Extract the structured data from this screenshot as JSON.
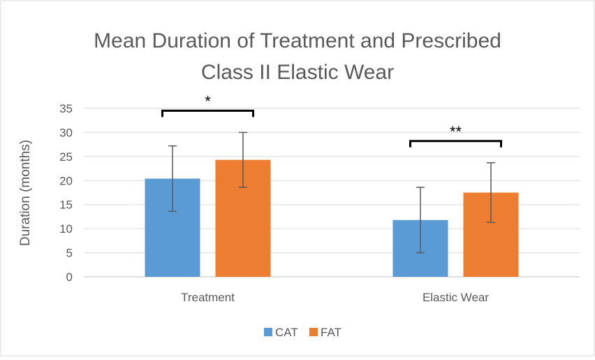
{
  "chart_data": {
    "type": "bar",
    "title": "Mean Duration of Treatment and Prescribed Class II Elastic Wear",
    "title_lines": [
      "Mean Duration of Treatment and Prescribed",
      "Class II Elastic Wear"
    ],
    "xlabel": "",
    "ylabel": "Duration (months)",
    "ylim": [
      0,
      35
    ],
    "yticks": [
      0,
      5,
      10,
      15,
      20,
      25,
      30,
      35
    ],
    "categories": [
      "Treatment",
      "Elastic Wear"
    ],
    "series": [
      {
        "name": "CAT",
        "color": "#5B9BD5",
        "values": [
          20.4,
          11.8
        ],
        "error": [
          6.8,
          6.8
        ]
      },
      {
        "name": "FAT",
        "color": "#ED7D31",
        "values": [
          24.3,
          17.5
        ],
        "error": [
          5.7,
          6.2
        ]
      }
    ],
    "grid": true,
    "legend_position": "bottom",
    "significance": [
      {
        "category_index": 0,
        "label": "*"
      },
      {
        "category_index": 1,
        "label": "**"
      }
    ]
  }
}
